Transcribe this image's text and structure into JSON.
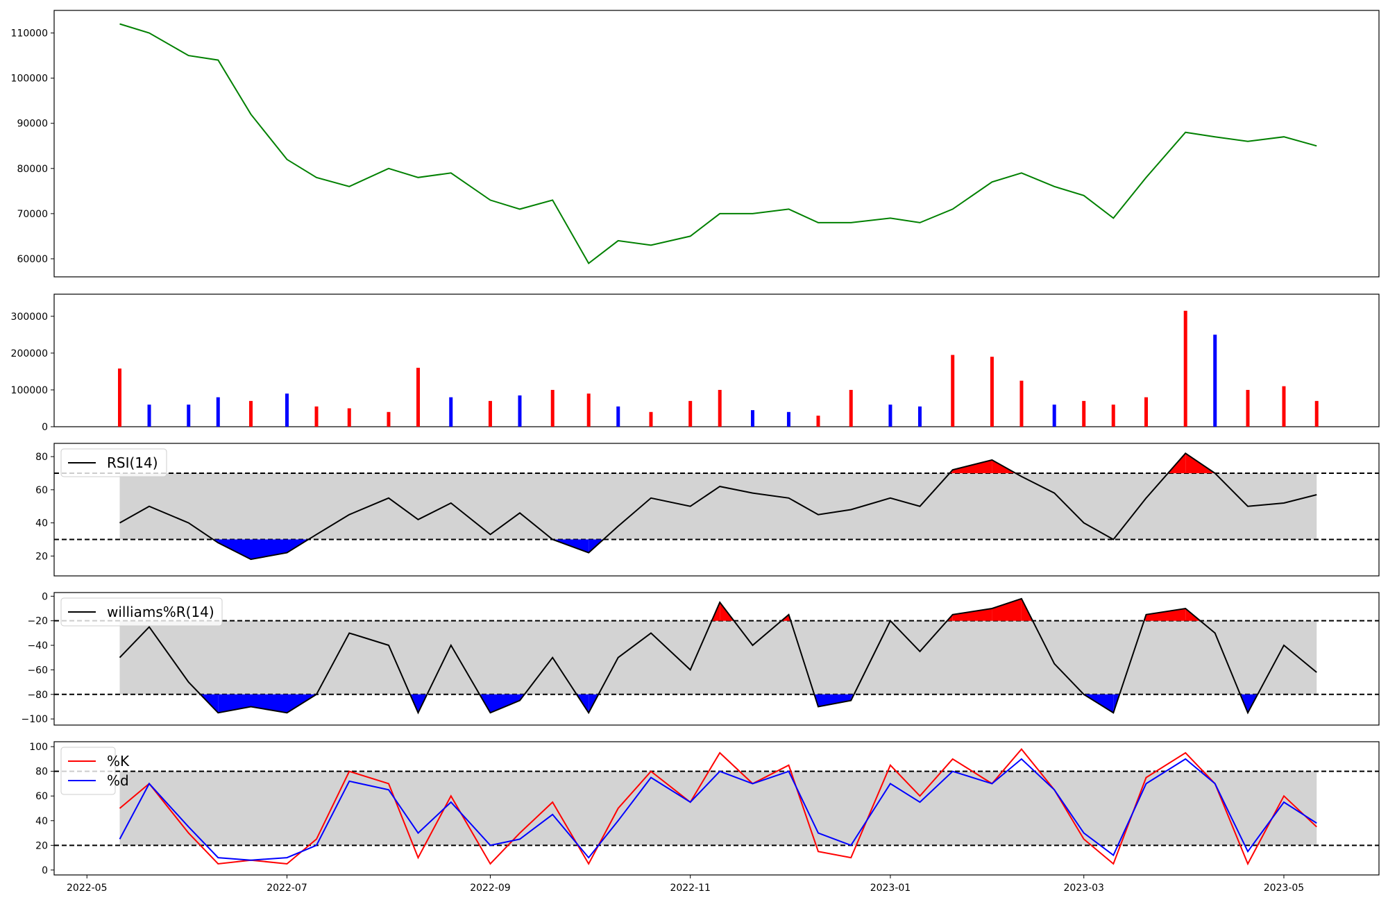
{
  "chart_data": [
    {
      "type": "line",
      "name": "price",
      "ylim": [
        56000,
        115000
      ],
      "yticks": [
        60000,
        70000,
        80000,
        90000,
        100000,
        110000
      ],
      "colors": {
        "line": "#008000"
      },
      "x": [
        "2022-05-11",
        "2022-05-20",
        "2022-06-01",
        "2022-06-10",
        "2022-06-20",
        "2022-07-01",
        "2022-07-10",
        "2022-07-20",
        "2022-08-01",
        "2022-08-10",
        "2022-08-20",
        "2022-09-01",
        "2022-09-10",
        "2022-09-20",
        "2022-10-01",
        "2022-10-10",
        "2022-10-20",
        "2022-11-01",
        "2022-11-10",
        "2022-11-20",
        "2022-12-01",
        "2022-12-10",
        "2022-12-20",
        "2023-01-01",
        "2023-01-10",
        "2023-01-20",
        "2023-02-01",
        "2023-02-10",
        "2023-02-20",
        "2023-03-01",
        "2023-03-10",
        "2023-03-20",
        "2023-04-01",
        "2023-04-10",
        "2023-04-20",
        "2023-05-01",
        "2023-05-11"
      ],
      "y": [
        112000,
        110000,
        105000,
        104000,
        92000,
        82000,
        78000,
        76000,
        80000,
        78000,
        79000,
        73000,
        71000,
        73000,
        59000,
        64000,
        63000,
        65000,
        70000,
        70000,
        71000,
        68000,
        68000,
        69000,
        68000,
        71000,
        77000,
        79000,
        76000,
        74000,
        69000,
        78000,
        88000,
        87000,
        86000,
        87000,
        85000
      ]
    },
    {
      "type": "bar",
      "name": "volume",
      "ylim": [
        0,
        360000
      ],
      "yticks": [
        0,
        100000,
        200000,
        300000
      ],
      "colors": {
        "up": "#ff0000",
        "down": "#0000ff",
        "flat": "#000000"
      },
      "x": [
        "2022-05-11",
        "2022-05-20",
        "2022-06-01",
        "2022-06-10",
        "2022-06-20",
        "2022-07-01",
        "2022-07-10",
        "2022-07-20",
        "2022-08-01",
        "2022-08-10",
        "2022-08-20",
        "2022-09-01",
        "2022-09-10",
        "2022-09-20",
        "2022-10-01",
        "2022-10-10",
        "2022-10-20",
        "2022-11-01",
        "2022-11-10",
        "2022-11-20",
        "2022-12-01",
        "2022-12-10",
        "2022-12-20",
        "2023-01-01",
        "2023-01-10",
        "2023-01-20",
        "2023-02-01",
        "2023-02-10",
        "2023-02-20",
        "2023-03-01",
        "2023-03-10",
        "2023-03-20",
        "2023-04-01",
        "2023-04-10",
        "2023-04-20",
        "2023-05-01",
        "2023-05-11"
      ],
      "values": [
        158000,
        60000,
        60000,
        80000,
        70000,
        90000,
        55000,
        50000,
        40000,
        160000,
        80000,
        70000,
        85000,
        100000,
        90000,
        55000,
        40000,
        70000,
        100000,
        45000,
        40000,
        30000,
        100000,
        60000,
        55000,
        195000,
        190000,
        125000,
        60000,
        70000,
        60000,
        80000,
        315000,
        250000,
        100000,
        110000,
        70000
      ],
      "direction": [
        "up",
        "down",
        "down",
        "down",
        "up",
        "down",
        "up",
        "up",
        "up",
        "up",
        "down",
        "up",
        "down",
        "up",
        "up",
        "down",
        "up",
        "up",
        "up",
        "down",
        "down",
        "up",
        "up",
        "down",
        "down",
        "up",
        "up",
        "up",
        "down",
        "up",
        "up",
        "up",
        "up",
        "down",
        "up",
        "up",
        "up"
      ]
    },
    {
      "type": "area",
      "name": "rsi",
      "ylim": [
        8,
        88
      ],
      "yticks": [
        20,
        40,
        60,
        80
      ],
      "thresholds": [
        30,
        70
      ],
      "legend": [
        "RSI(14)"
      ],
      "colors": {
        "line": "#000000",
        "band": "#d3d3d3",
        "high": "#ff0000",
        "low": "#0000ff"
      },
      "x": [
        "2022-05-11",
        "2022-05-20",
        "2022-06-01",
        "2022-06-10",
        "2022-06-20",
        "2022-07-01",
        "2022-07-10",
        "2022-07-20",
        "2022-08-01",
        "2022-08-10",
        "2022-08-20",
        "2022-09-01",
        "2022-09-10",
        "2022-09-20",
        "2022-10-01",
        "2022-10-10",
        "2022-10-20",
        "2022-11-01",
        "2022-11-10",
        "2022-11-20",
        "2022-12-01",
        "2022-12-10",
        "2022-12-20",
        "2023-01-01",
        "2023-01-10",
        "2023-01-20",
        "2023-02-01",
        "2023-02-10",
        "2023-02-20",
        "2023-03-01",
        "2023-03-10",
        "2023-03-20",
        "2023-04-01",
        "2023-04-10",
        "2023-04-20",
        "2023-05-01",
        "2023-05-11"
      ],
      "y": [
        40,
        50,
        40,
        28,
        18,
        22,
        33,
        45,
        55,
        42,
        52,
        33,
        46,
        30,
        22,
        38,
        55,
        50,
        62,
        58,
        55,
        45,
        48,
        55,
        50,
        72,
        78,
        68,
        58,
        40,
        30,
        55,
        82,
        70,
        50,
        52,
        57
      ]
    },
    {
      "type": "area",
      "name": "williams",
      "ylim": [
        -105,
        3
      ],
      "yticks": [
        -100,
        -80,
        -60,
        -40,
        -20,
        0
      ],
      "thresholds": [
        -80,
        -20
      ],
      "legend": [
        "williams%R(14)"
      ],
      "colors": {
        "line": "#000000",
        "band": "#d3d3d3",
        "high": "#ff0000",
        "low": "#0000ff"
      },
      "x": [
        "2022-05-11",
        "2022-05-20",
        "2022-06-01",
        "2022-06-10",
        "2022-06-20",
        "2022-07-01",
        "2022-07-10",
        "2022-07-20",
        "2022-08-01",
        "2022-08-10",
        "2022-08-20",
        "2022-09-01",
        "2022-09-10",
        "2022-09-20",
        "2022-10-01",
        "2022-10-10",
        "2022-10-20",
        "2022-11-01",
        "2022-11-10",
        "2022-11-20",
        "2022-12-01",
        "2022-12-10",
        "2022-12-20",
        "2023-01-01",
        "2023-01-10",
        "2023-01-20",
        "2023-02-01",
        "2023-02-10",
        "2023-02-20",
        "2023-03-01",
        "2023-03-10",
        "2023-03-20",
        "2023-04-01",
        "2023-04-10",
        "2023-04-20",
        "2023-05-01",
        "2023-05-11"
      ],
      "y": [
        -50,
        -25,
        -70,
        -95,
        -90,
        -95,
        -80,
        -30,
        -40,
        -95,
        -40,
        -95,
        -85,
        -50,
        -95,
        -50,
        -30,
        -60,
        -5,
        -40,
        -15,
        -90,
        -85,
        -20,
        -45,
        -15,
        -10,
        -2,
        -55,
        -80,
        -95,
        -15,
        -10,
        -30,
        -95,
        -40,
        -62
      ]
    },
    {
      "type": "line",
      "name": "stochastic",
      "ylim": [
        -4,
        104
      ],
      "yticks": [
        0,
        20,
        40,
        60,
        80,
        100
      ],
      "thresholds": [
        20,
        80
      ],
      "legend": [
        "%K",
        "%d"
      ],
      "colors": {
        "k": "#ff0000",
        "d": "#0000ff",
        "band": "#d3d3d3"
      },
      "xticks": [
        "2022-05",
        "2022-07",
        "2022-09",
        "2022-11",
        "2023-01",
        "2023-03",
        "2023-05"
      ],
      "x": [
        "2022-05-11",
        "2022-05-20",
        "2022-06-01",
        "2022-06-10",
        "2022-06-20",
        "2022-07-01",
        "2022-07-10",
        "2022-07-20",
        "2022-08-01",
        "2022-08-10",
        "2022-08-20",
        "2022-09-01",
        "2022-09-10",
        "2022-09-20",
        "2022-10-01",
        "2022-10-10",
        "2022-10-20",
        "2022-11-01",
        "2022-11-10",
        "2022-11-20",
        "2022-12-01",
        "2022-12-10",
        "2022-12-20",
        "2023-01-01",
        "2023-01-10",
        "2023-01-20",
        "2023-02-01",
        "2023-02-10",
        "2023-02-20",
        "2023-03-01",
        "2023-03-10",
        "2023-03-20",
        "2023-04-01",
        "2023-04-10",
        "2023-04-20",
        "2023-05-01",
        "2023-05-11"
      ],
      "series": [
        {
          "name": "%K",
          "values": [
            50,
            70,
            30,
            5,
            8,
            5,
            25,
            80,
            70,
            10,
            60,
            5,
            30,
            55,
            5,
            50,
            80,
            55,
            95,
            70,
            85,
            15,
            10,
            85,
            60,
            90,
            70,
            98,
            65,
            25,
            5,
            75,
            95,
            70,
            5,
            60,
            35
          ]
        },
        {
          "name": "%d",
          "values": [
            25,
            70,
            35,
            10,
            8,
            10,
            20,
            72,
            65,
            30,
            55,
            20,
            25,
            45,
            10,
            40,
            75,
            55,
            80,
            70,
            80,
            30,
            20,
            70,
            55,
            80,
            70,
            90,
            65,
            30,
            12,
            70,
            90,
            70,
            15,
            55,
            38
          ]
        }
      ]
    }
  ]
}
